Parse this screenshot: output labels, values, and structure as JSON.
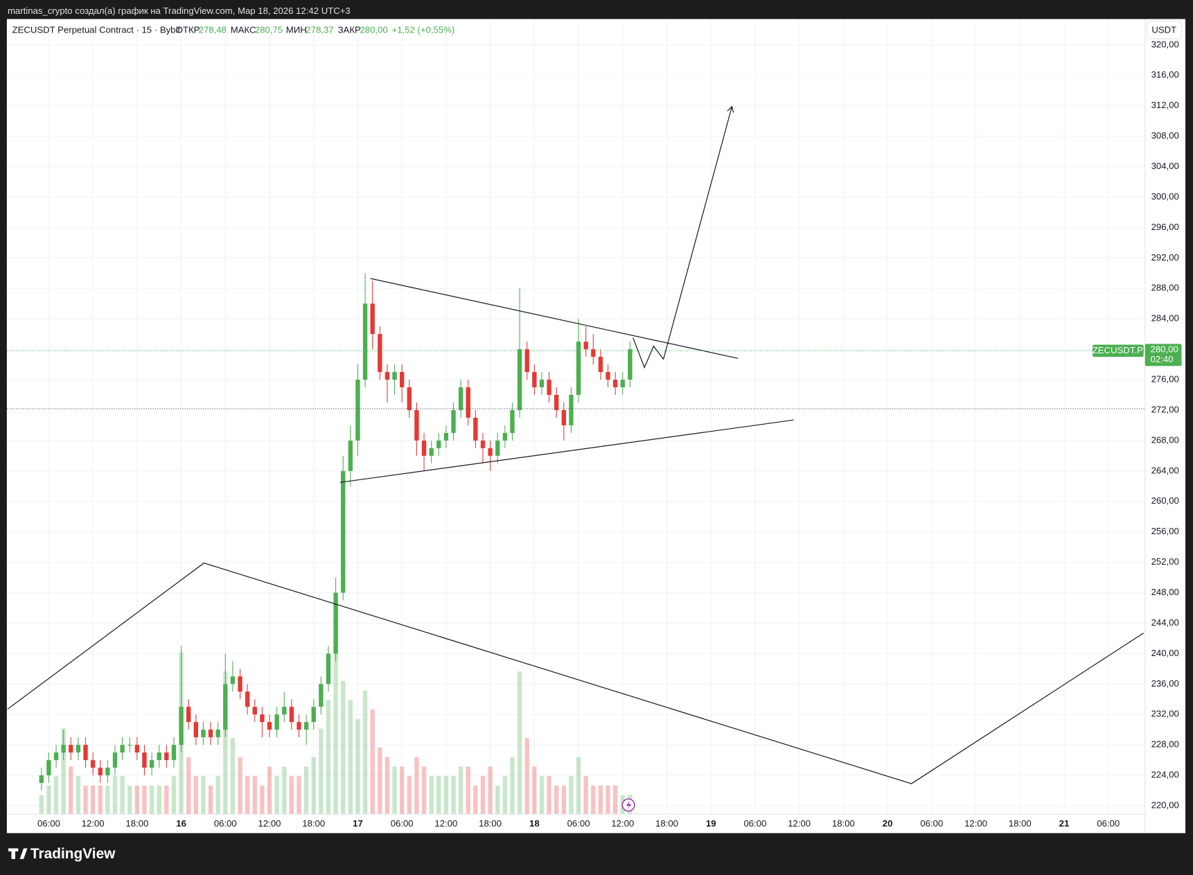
{
  "header": {
    "author_line": "martinas_crypto создал(а) график на TradingView.com, Map 18, 2026 12:42 UTC+3"
  },
  "legend": {
    "symbol": "ZECUSDT Perpetual Contract · 15 · Bybit",
    "open_label": "ОТКР",
    "open": "278,48",
    "high_label": "МАКС",
    "high": "280,75",
    "low_label": "МИН",
    "low": "278,37",
    "close_label": "ЗАКР",
    "close": "280,00",
    "change": "+1,52 (+0,55%)"
  },
  "currency_button": "USDT",
  "price_tag": {
    "symbol": "ZECUSDT.P",
    "price": "280,00",
    "countdown": "02:40"
  },
  "footer": {
    "brand": "TradingView"
  },
  "chart_data": {
    "type": "candlestick",
    "up_color": "#4caf50",
    "down_color": "#e53935",
    "grid": true,
    "x": [
      5,
      6,
      7,
      8,
      9,
      10,
      11,
      12,
      13,
      14,
      15,
      16,
      17,
      18,
      19,
      20,
      21,
      22,
      23,
      24,
      25,
      26,
      27,
      28,
      29,
      30,
      31,
      32,
      33,
      34,
      35,
      36,
      37,
      38,
      39,
      40,
      41,
      42,
      43,
      44,
      45,
      46,
      47,
      48,
      49,
      50,
      51,
      52,
      53,
      54,
      55,
      56,
      57,
      58,
      59,
      60,
      61,
      62,
      63,
      64,
      65,
      66,
      67,
      68,
      69,
      70,
      71,
      72,
      73,
      74,
      75,
      76,
      77,
      78,
      79,
      80,
      81,
      82,
      83,
      84,
      85
    ],
    "open": [
      223,
      224,
      226,
      227,
      228,
      227,
      228,
      226,
      225,
      224,
      225,
      227,
      228,
      228,
      227,
      225,
      226,
      227,
      226,
      228,
      233,
      231,
      229,
      230,
      229,
      230,
      236,
      237,
      235,
      233,
      232,
      231,
      230,
      232,
      233,
      231,
      230,
      231,
      233,
      236,
      240,
      248,
      264,
      268,
      276,
      286,
      282,
      277,
      276,
      277,
      275,
      272,
      268,
      266,
      267,
      268,
      269,
      272,
      275,
      271,
      268,
      267,
      266,
      268,
      269,
      272,
      280,
      277,
      275,
      276,
      274,
      272,
      270,
      274,
      281,
      280,
      279,
      277,
      276,
      275,
      276
    ],
    "high": [
      225,
      227,
      228,
      230,
      229,
      229,
      229,
      227,
      226,
      226,
      228,
      229,
      229,
      229,
      228,
      227,
      228,
      228,
      229,
      241,
      234,
      232,
      231,
      231,
      231,
      240,
      239,
      238,
      236,
      234,
      233,
      232,
      233,
      235,
      234,
      232,
      232,
      234,
      237,
      241,
      250,
      266,
      270,
      278,
      290,
      289,
      283,
      278,
      278,
      278,
      276,
      273,
      269,
      268,
      269,
      270,
      273,
      276,
      276,
      272,
      269,
      268,
      269,
      270,
      273,
      288,
      281,
      278,
      277,
      277,
      275,
      273,
      275,
      284,
      283,
      282,
      280,
      278,
      277,
      277,
      281
    ],
    "low": [
      222,
      223,
      225,
      226,
      226,
      226,
      225,
      224,
      223,
      223,
      224,
      226,
      227,
      226,
      224,
      224,
      225,
      225,
      225,
      227,
      230,
      228,
      228,
      228,
      228,
      229,
      235,
      234,
      232,
      231,
      229,
      229,
      229,
      231,
      230,
      229,
      228,
      230,
      232,
      235,
      239,
      247,
      262,
      266,
      275,
      280,
      276,
      273,
      274,
      273,
      271,
      266,
      264,
      265,
      266,
      267,
      268,
      271,
      270,
      267,
      265,
      264,
      265,
      267,
      268,
      271,
      276,
      274,
      274,
      273,
      271,
      268,
      269,
      273,
      279,
      278,
      276,
      275,
      274,
      274,
      275
    ],
    "close": [
      224,
      226,
      227,
      228,
      227,
      228,
      226,
      225,
      224,
      225,
      227,
      228,
      228,
      227,
      225,
      226,
      227,
      226,
      228,
      233,
      231,
      229,
      230,
      229,
      230,
      236,
      237,
      235,
      233,
      232,
      231,
      230,
      232,
      233,
      231,
      230,
      231,
      233,
      236,
      240,
      248,
      264,
      268,
      276,
      286,
      282,
      277,
      276,
      277,
      275,
      272,
      268,
      266,
      267,
      268,
      269,
      272,
      275,
      271,
      268,
      267,
      266,
      268,
      269,
      272,
      280,
      277,
      275,
      276,
      274,
      272,
      270,
      274,
      281,
      280,
      279,
      277,
      276,
      275,
      276,
      280
    ],
    "volume": [
      2,
      3,
      4,
      9,
      5,
      4,
      3,
      3,
      3,
      3,
      4,
      4,
      3,
      3,
      3,
      3,
      3,
      3,
      4,
      17,
      6,
      4,
      4,
      3,
      4,
      15,
      8,
      6,
      4,
      4,
      3,
      5,
      4,
      5,
      4,
      4,
      5,
      6,
      9,
      12,
      20,
      14,
      12,
      10,
      13,
      11,
      7,
      6,
      5,
      5,
      4,
      6,
      5,
      4,
      4,
      4,
      4,
      5,
      5,
      3,
      4,
      5,
      3,
      4,
      6,
      15,
      8,
      5,
      4,
      4,
      3,
      3,
      4,
      6,
      4,
      3,
      3,
      3,
      3,
      2,
      2
    ],
    "vlim": [
      0,
      20
    ],
    "xlim": [
      0.3,
      155
    ],
    "xticks": [
      {
        "value": 6,
        "label": "06:00"
      },
      {
        "value": 12,
        "label": "12:00"
      },
      {
        "value": 18,
        "label": "18:00"
      },
      {
        "value": 24,
        "label": "16"
      },
      {
        "value": 30,
        "label": "06:00"
      },
      {
        "value": 36,
        "label": "12:00"
      },
      {
        "value": 42,
        "label": "18:00"
      },
      {
        "value": 48,
        "label": "17"
      },
      {
        "value": 54,
        "label": "06:00"
      },
      {
        "value": 60,
        "label": "12:00"
      },
      {
        "value": 66,
        "label": "18:00"
      },
      {
        "value": 72,
        "label": "18"
      },
      {
        "value": 78,
        "label": "06:00"
      },
      {
        "value": 84,
        "label": "12:00"
      },
      {
        "value": 90,
        "label": "18:00"
      },
      {
        "value": 96,
        "label": "19"
      },
      {
        "value": 102,
        "label": "06:00"
      },
      {
        "value": 108,
        "label": "12:00"
      },
      {
        "value": 114,
        "label": "18:00"
      },
      {
        "value": 120,
        "label": "20"
      },
      {
        "value": 126,
        "label": "06:00"
      },
      {
        "value": 132,
        "label": "12:00"
      },
      {
        "value": 138,
        "label": "18:00"
      },
      {
        "value": 144,
        "label": "21"
      },
      {
        "value": 150,
        "label": "06:00"
      }
    ],
    "ylim": [
      218.9,
      323.4
    ],
    "yticks": [
      {
        "value": 220,
        "label": "220,00"
      },
      {
        "value": 224,
        "label": "224,00"
      },
      {
        "value": 228,
        "label": "228,00"
      },
      {
        "value": 232,
        "label": "232,00"
      },
      {
        "value": 236,
        "label": "236,00"
      },
      {
        "value": 240,
        "label": "240,00"
      },
      {
        "value": 244,
        "label": "244,00"
      },
      {
        "value": 248,
        "label": "248,00"
      },
      {
        "value": 252,
        "label": "252,00"
      },
      {
        "value": 256,
        "label": "256,00"
      },
      {
        "value": 260,
        "label": "260,00"
      },
      {
        "value": 264,
        "label": "264,00"
      },
      {
        "value": 268,
        "label": "268,00"
      },
      {
        "value": 272,
        "label": "272,00"
      },
      {
        "value": 276,
        "label": "276,00"
      },
      {
        "value": 280,
        "label": "280,00"
      },
      {
        "value": 284,
        "label": "284,00"
      },
      {
        "value": 288,
        "label": "288,00"
      },
      {
        "value": 292,
        "label": "292,00"
      },
      {
        "value": 296,
        "label": "296,00"
      },
      {
        "value": 300,
        "label": "300,00"
      },
      {
        "value": 304,
        "label": "304,00"
      },
      {
        "value": 308,
        "label": "308,00"
      },
      {
        "value": 312,
        "label": "312,00"
      },
      {
        "value": 316,
        "label": "316,00"
      },
      {
        "value": 320,
        "label": "320,00"
      }
    ]
  }
}
